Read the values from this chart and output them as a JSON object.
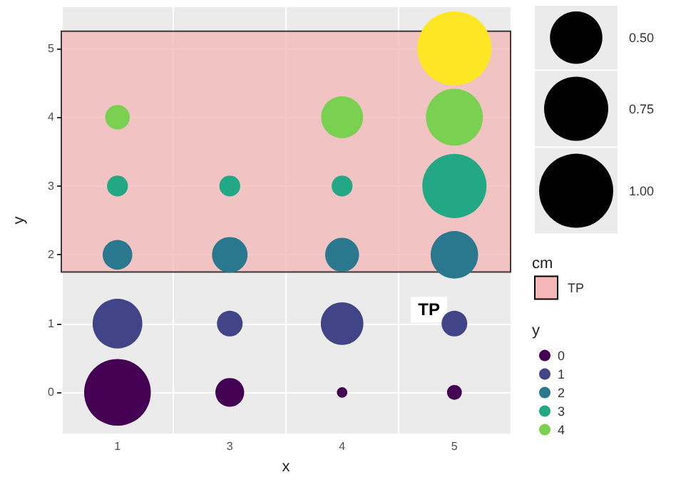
{
  "chart_data": {
    "type": "bubble",
    "xlabel": "x",
    "ylabel": "y",
    "legend_title": "y",
    "categories": [
      "1",
      "3",
      "4",
      "5"
    ],
    "ylim": [
      -0.6,
      5.6
    ],
    "yticks": [
      0,
      1,
      2,
      3,
      4,
      5
    ],
    "grid": true,
    "legend": "right",
    "size_legend": [
      {
        "value": 0.5,
        "label": "0.50"
      },
      {
        "value": 0.75,
        "label": "0.75"
      },
      {
        "value": 1.0,
        "label": "1.00"
      }
    ],
    "bands": [
      {
        "axis": "y",
        "from": 1.75,
        "to": 5.25,
        "label": "TP",
        "color": "#f4b6b6"
      }
    ],
    "annotations": [
      "cm"
    ],
    "series": [
      {
        "name": "0",
        "color": "#440154",
        "values": [
          0,
          0,
          0,
          0
        ],
        "sizes": [
          0.81,
          0.15,
          0.02,
          0.04
        ]
      },
      {
        "name": "1",
        "color": "#414487",
        "values": [
          1,
          1,
          1,
          1
        ],
        "sizes": [
          0.45,
          0.12,
          0.33,
          0.12
        ]
      },
      {
        "name": "2",
        "color": "#2a788e",
        "values": [
          2,
          2,
          2,
          2
        ],
        "sizes": [
          0.16,
          0.23,
          0.21,
          0.41
        ]
      },
      {
        "name": "3",
        "color": "#22a884",
        "values": [
          3,
          3,
          3,
          3
        ],
        "sizes": [
          0.08,
          0.08,
          0.08,
          0.75
        ]
      },
      {
        "name": "4",
        "color": "#7ad151",
        "values": [
          4,
          null,
          4,
          4
        ],
        "sizes": [
          0.11,
          null,
          0.32,
          0.59
        ]
      },
      {
        "color": "#fde725",
        "values": [
          null,
          null,
          null,
          5
        ],
        "sizes": [
          null,
          null,
          null,
          1.0
        ]
      }
    ]
  }
}
